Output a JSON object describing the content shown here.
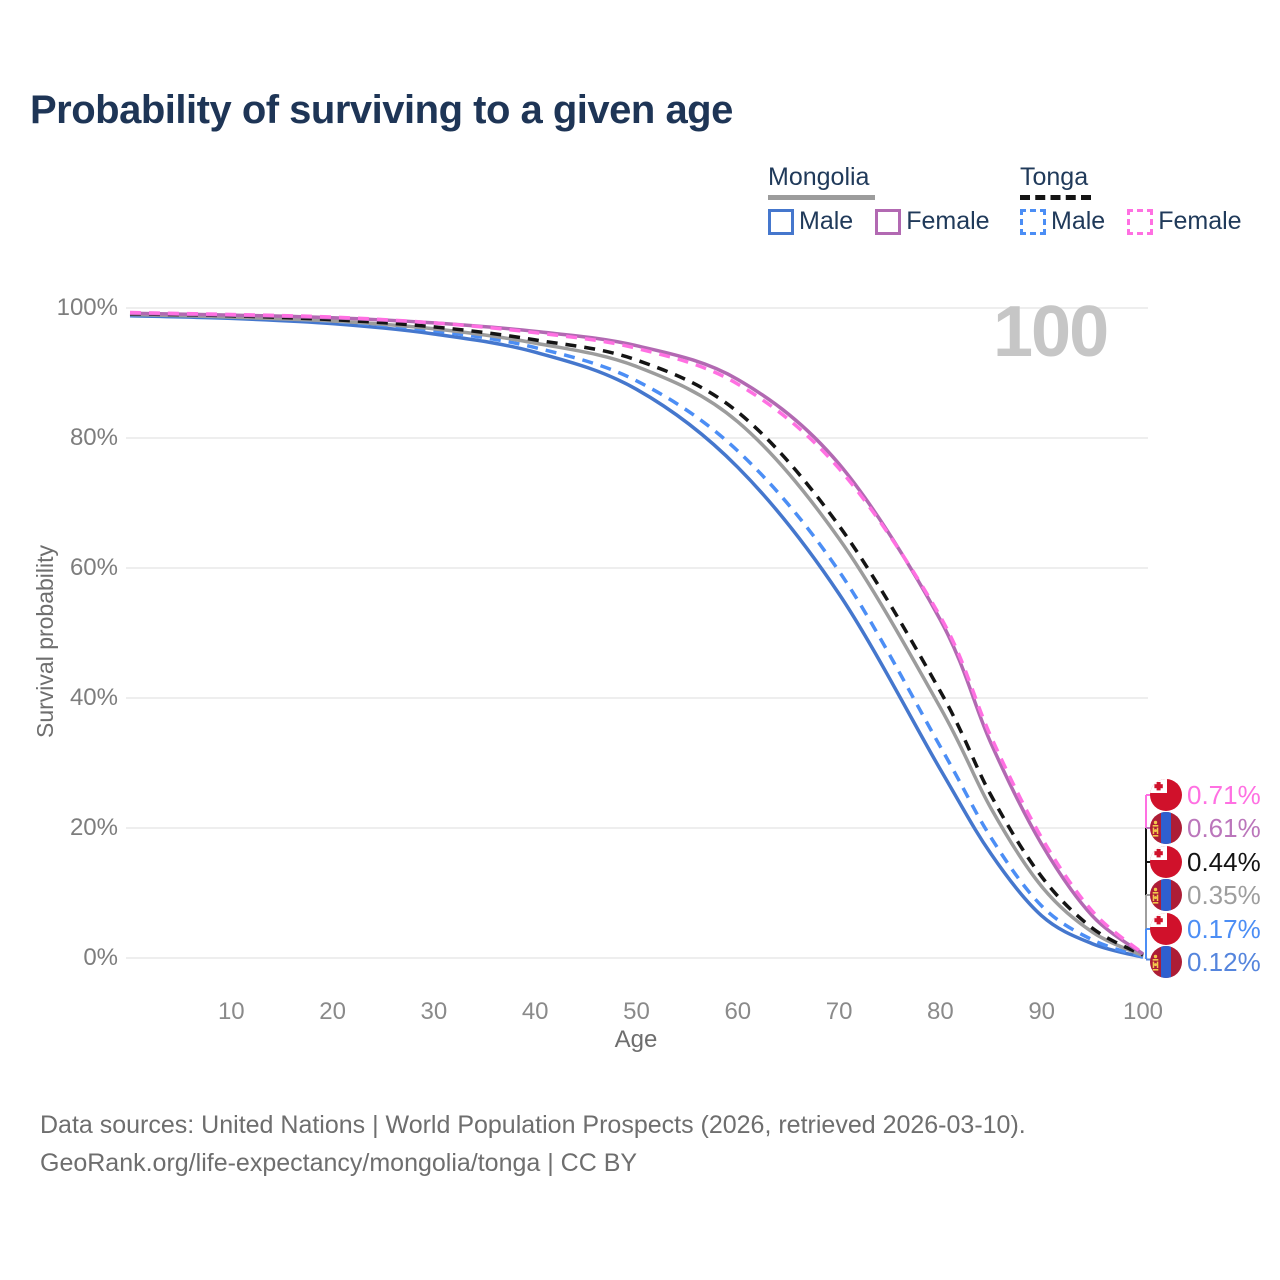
{
  "title": "Probability of surviving to a given age",
  "age_indicator": "100",
  "legend": {
    "groups": [
      {
        "name": "Mongolia",
        "underline_color": "#9c9c9c",
        "items": [
          {
            "label": "Male",
            "color": "#4577cd"
          },
          {
            "label": "Female",
            "color": "#b269b2"
          }
        ]
      },
      {
        "name": "Tonga",
        "underline_color": "#141414",
        "items": [
          {
            "label": "Male",
            "color": "#4c8ef5"
          },
          {
            "label": "Female",
            "color": "#ff70e2"
          }
        ]
      }
    ]
  },
  "chart_data": {
    "type": "line",
    "title": "Probability of surviving to a given age",
    "xlabel": "Age",
    "ylabel": "Survival probability",
    "xlim": [
      0,
      100
    ],
    "ylim": [
      0,
      100
    ],
    "grid": "horizontal",
    "legend_position": "top-right",
    "x": [
      0,
      10,
      20,
      30,
      40,
      50,
      60,
      70,
      80,
      85,
      90,
      95,
      100
    ],
    "xticks": [
      {
        "v": 10,
        "label": "10"
      },
      {
        "v": 20,
        "label": "20"
      },
      {
        "v": 30,
        "label": "30"
      },
      {
        "v": 40,
        "label": "40"
      },
      {
        "v": 50,
        "label": "50"
      },
      {
        "v": 60,
        "label": "60"
      },
      {
        "v": 70,
        "label": "70"
      },
      {
        "v": 80,
        "label": "80"
      },
      {
        "v": 90,
        "label": "90"
      },
      {
        "v": 100,
        "label": "100"
      }
    ],
    "yticks": [
      {
        "v": 0,
        "label": "0%"
      },
      {
        "v": 20,
        "label": "20%"
      },
      {
        "v": 40,
        "label": "40%"
      },
      {
        "v": 60,
        "label": "60%"
      },
      {
        "v": 80,
        "label": "80%"
      },
      {
        "v": 100,
        "label": "100%"
      }
    ],
    "series": [
      {
        "name": "Mongolia Male",
        "country": "Mongolia",
        "sex": "Male",
        "color": "#4577cd",
        "dashed": false,
        "end_label": "0.12%",
        "values": [
          98.8,
          98.4,
          97.6,
          96.0,
          93.2,
          87.5,
          75.5,
          56.0,
          29.0,
          16.0,
          6.5,
          2.2,
          0.12
        ]
      },
      {
        "name": "Tonga Male",
        "country": "Tonga",
        "sex": "Male",
        "color": "#4c8ef5",
        "dashed": true,
        "end_label": "0.17%",
        "values": [
          99.0,
          98.6,
          97.9,
          96.5,
          93.9,
          88.8,
          78.0,
          59.5,
          32.5,
          18.5,
          8.0,
          2.8,
          0.17
        ]
      },
      {
        "name": "Mongolia Both sexes",
        "country": "Mongolia",
        "sex": "Both",
        "color": "#9c9c9c",
        "dashed": false,
        "end_label": "0.35%",
        "values": [
          99.0,
          98.6,
          98.0,
          96.8,
          94.6,
          91.0,
          82.5,
          64.5,
          38.5,
          23.0,
          11.0,
          4.0,
          0.35
        ]
      },
      {
        "name": "Tonga Both sexes",
        "country": "Tonga",
        "sex": "Both",
        "color": "#141414",
        "dashed": true,
        "end_label": "0.44%",
        "values": [
          99.1,
          98.8,
          98.2,
          97.1,
          95.1,
          92.0,
          84.0,
          66.5,
          41.0,
          25.0,
          12.5,
          4.6,
          0.44
        ]
      },
      {
        "name": "Mongolia Female",
        "country": "Mongolia",
        "sex": "Female",
        "color": "#b269b2",
        "dashed": false,
        "end_label": "0.61%",
        "values": [
          99.2,
          98.9,
          98.5,
          97.7,
          96.4,
          94.2,
          89.0,
          76.0,
          52.0,
          33.0,
          17.5,
          6.5,
          0.61
        ]
      },
      {
        "name": "Tonga Female",
        "country": "Tonga",
        "sex": "Female",
        "color": "#ff70e2",
        "dashed": true,
        "end_label": "0.71%",
        "values": [
          99.3,
          99.0,
          98.6,
          97.7,
          96.2,
          93.8,
          88.3,
          75.3,
          52.5,
          34.0,
          18.5,
          7.2,
          0.71
        ]
      }
    ]
  },
  "endpoints": [
    {
      "country": "Tonga",
      "value": "0.71%",
      "color": "#ff70e2"
    },
    {
      "country": "Mongolia",
      "value": "0.61%",
      "color": "#bb76bb"
    },
    {
      "country": "Tonga",
      "value": "0.44%",
      "color": "#141414"
    },
    {
      "country": "Mongolia",
      "value": "0.35%",
      "color": "#9e9e9e"
    },
    {
      "country": "Tonga",
      "value": "0.17%",
      "color": "#4c8ef5"
    },
    {
      "country": "Mongolia",
      "value": "0.12%",
      "color": "#5585dd"
    }
  ],
  "footer": {
    "line1": "Data sources: United Nations | World Population Prospects (2026, retrieved 2026-03-10).",
    "line2": "GeoRank.org/life-expectancy/mongolia/tonga | CC BY"
  },
  "colors": {
    "grid": "#e8e8e8",
    "title_text": "#1e3556",
    "legend_text": "#203a5a",
    "axis_text": "#7d7d7d",
    "footer_text": "#6e6e6e",
    "watermark": "#c6c6c6"
  }
}
